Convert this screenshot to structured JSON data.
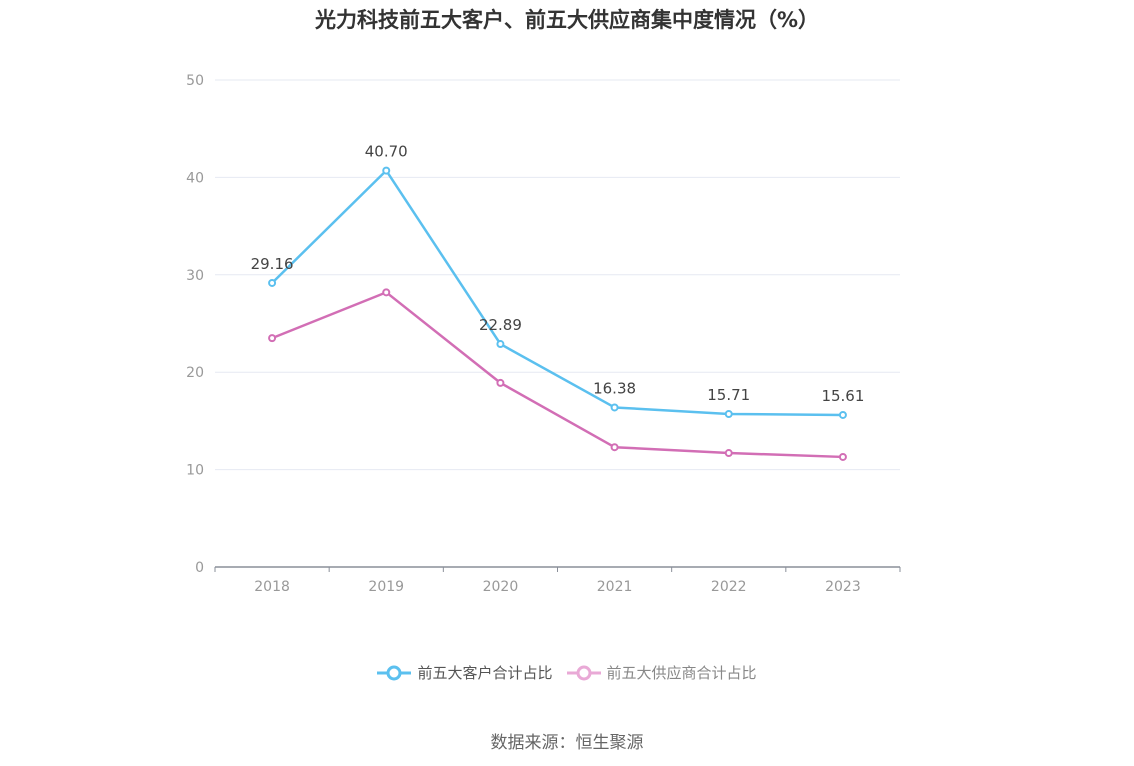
{
  "title": "光力科技前五大客户、前五大供应商集中度情况（%）",
  "source": "数据来源：恒生聚源",
  "colors": {
    "customers": "#5bc0ef",
    "suppliers": "#d26eb5",
    "grid": "#e6e9f2",
    "axis": "#8a8f99"
  },
  "chart_data": {
    "type": "line",
    "title": "光力科技前五大客户、前五大供应商集中度情况（%）",
    "categories": [
      "2018",
      "2019",
      "2020",
      "2021",
      "2022",
      "2023"
    ],
    "ylim": [
      0,
      50
    ],
    "yticks": [
      "0",
      "10",
      "20",
      "30",
      "40",
      "50"
    ],
    "grid": true,
    "legend_position": "bottom",
    "series": [
      {
        "name": "前五大客户合计占比",
        "values": [
          29.16,
          40.7,
          22.89,
          16.38,
          15.71,
          15.61
        ],
        "labels": [
          "29.16",
          "40.70",
          "22.89",
          "16.38",
          "15.71",
          "15.61"
        ],
        "show_labels": true
      },
      {
        "name": "前五大供应商合计占比",
        "values": [
          23.5,
          28.2,
          18.9,
          12.3,
          11.7,
          11.3
        ],
        "show_labels": false
      }
    ]
  }
}
